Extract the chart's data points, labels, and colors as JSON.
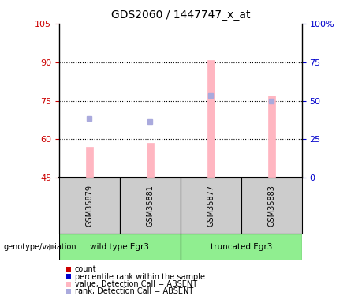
{
  "title": "GDS2060 / 1447747_x_at",
  "samples": [
    "GSM35879",
    "GSM35881",
    "GSM35877",
    "GSM35883"
  ],
  "bar_values": [
    57.0,
    58.5,
    91.0,
    77.0
  ],
  "rank_values": [
    68.0,
    67.0,
    77.0,
    75.0
  ],
  "y_min": 45,
  "y_max": 105,
  "y_ticks": [
    45,
    60,
    75,
    90,
    105
  ],
  "y2_ticks": [
    0,
    25,
    50,
    75,
    100
  ],
  "y2_labels": [
    "0",
    "25",
    "50",
    "75",
    "100%"
  ],
  "bar_color": "#FFB6C1",
  "rank_color": "#AAAADD",
  "left_axis_color": "#CC0000",
  "right_axis_color": "#0000CC",
  "bar_width": 0.12,
  "group1_label": "wild type Egr3",
  "group2_label": "truncated Egr3",
  "sample_box_color": "#CCCCCC",
  "group_color": "#90EE90",
  "legend_count_color": "#CC0000",
  "legend_rank_color": "#0000CC"
}
